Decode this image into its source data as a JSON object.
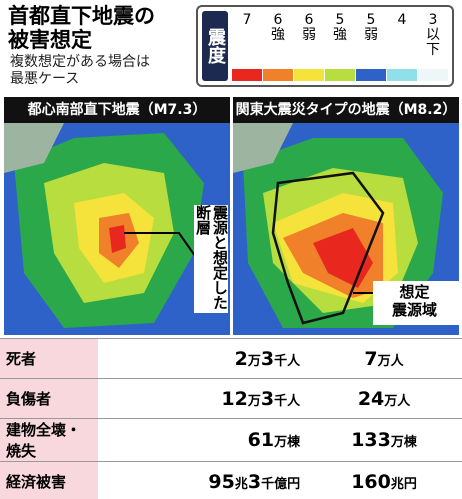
{
  "header": {
    "title": [
      "首都直下地震の",
      "被害想定"
    ],
    "subtitle": [
      "複数想定がある場合は",
      "最悪ケース"
    ]
  },
  "legend": {
    "label": "震度",
    "items": [
      {
        "label": "7",
        "color": "#e8281e"
      },
      {
        "label": "6強",
        "color": "#f0802a"
      },
      {
        "label": "6弱",
        "color": "#f5e23b"
      },
      {
        "label": "5強",
        "color": "#b7de3e"
      },
      {
        "label": "5弱",
        "color": "#2f62c8"
      },
      {
        "label": "4",
        "color": "#8fe0e8"
      },
      {
        "label": "3以下",
        "color": "#eef7f8"
      }
    ]
  },
  "panels": [
    {
      "title": "都心南部直下地震（M7.3）",
      "annotation": "震源と想定した断層"
    },
    {
      "title": "関東大震災タイプの地震（M8.2）",
      "annotation": [
        "想定",
        "震源域"
      ]
    }
  ],
  "table": {
    "rows": [
      [
        "死者",
        "2万3千人",
        "7万人"
      ],
      [
        "負傷者",
        "12万3千人",
        "24万人"
      ],
      [
        "建物全壊・焼失",
        "61万棟",
        "133万棟"
      ],
      [
        "経済被害",
        "95兆3千億円",
        "160兆円"
      ]
    ]
  }
}
